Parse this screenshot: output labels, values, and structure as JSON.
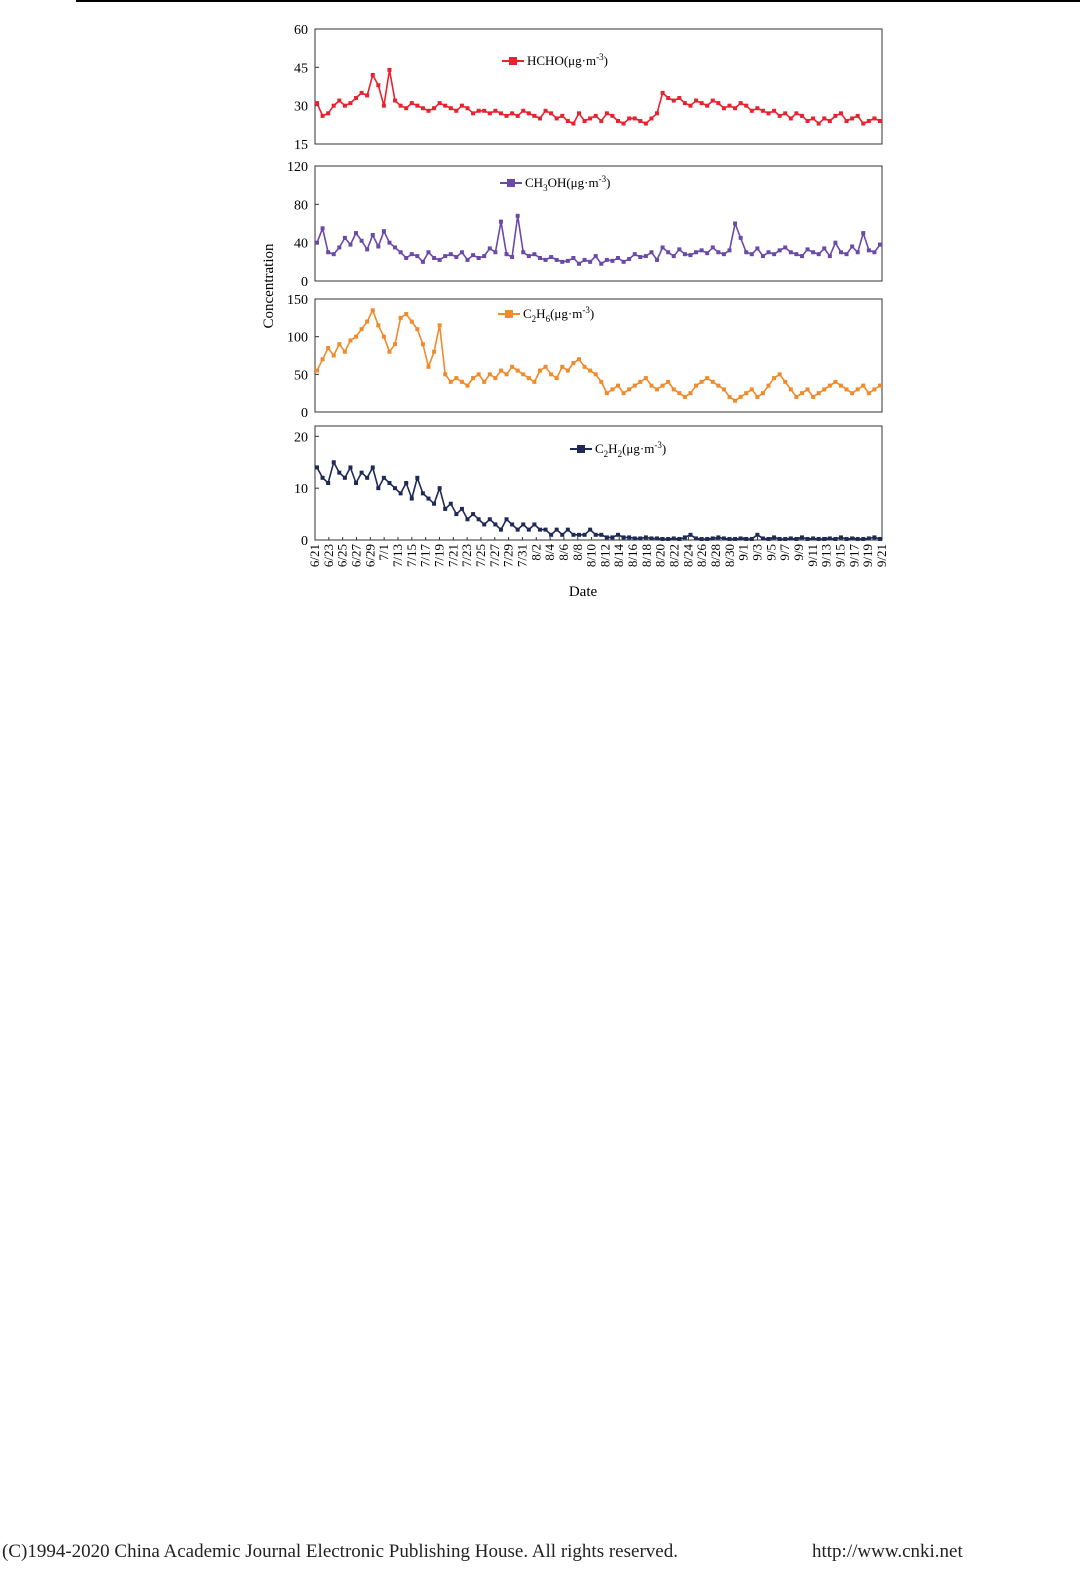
{
  "chart_data": {
    "type": "line",
    "xlabel": "Date",
    "ylabel": "Concentration",
    "x_tick_labels": [
      "6/21",
      "6/23",
      "6/25",
      "6/27",
      "6/29",
      "7/1",
      "7/13",
      "7/15",
      "7/17",
      "7/19",
      "7/21",
      "7/23",
      "7/25",
      "7/27",
      "7/29",
      "7/31",
      "8/2",
      "8/4",
      "8/6",
      "8/8",
      "8/10",
      "8/12",
      "8/14",
      "8/16",
      "8/18",
      "8/20",
      "8/22",
      "8/24",
      "8/26",
      "8/28",
      "8/30",
      "9/1",
      "9/3",
      "9/5",
      "9/7",
      "9/9",
      "9/11",
      "9/13",
      "9/15",
      "9/17",
      "9/19",
      "9/21"
    ],
    "panels": [
      {
        "series_name": "HCHO(μg·m⁻³)",
        "color": "#e8222e",
        "ylim": [
          15,
          60
        ],
        "yticks": [
          15,
          30,
          45,
          60
        ],
        "values": [
          31,
          26,
          27,
          30,
          32,
          30,
          31,
          33,
          35,
          34,
          42,
          38,
          30,
          44,
          32,
          30,
          29,
          31,
          30,
          29,
          28,
          29,
          31,
          30,
          29,
          28,
          30,
          29,
          27,
          28,
          28,
          27,
          28,
          27,
          26,
          27,
          26,
          28,
          27,
          26,
          25,
          28,
          27,
          25,
          26,
          24,
          23,
          27,
          24,
          25,
          26,
          24,
          27,
          26,
          24,
          23,
          25,
          25,
          24,
          23,
          25,
          27,
          35,
          33,
          32,
          33,
          31,
          30,
          32,
          31,
          30,
          32,
          31,
          29,
          30,
          29,
          31,
          30,
          28,
          29,
          28,
          27,
          28,
          26,
          27,
          25,
          27,
          26,
          24,
          25,
          23,
          25,
          24,
          26,
          27,
          24,
          25,
          26,
          23,
          24,
          25,
          24
        ]
      },
      {
        "series_name": "CH₃OH(μg·m⁻³)",
        "color": "#6a4aa6",
        "ylim": [
          0,
          120
        ],
        "yticks": [
          0,
          40,
          80,
          120
        ],
        "values": [
          40,
          55,
          30,
          28,
          35,
          45,
          38,
          50,
          42,
          33,
          48,
          36,
          52,
          40,
          35,
          30,
          24,
          28,
          26,
          20,
          30,
          24,
          22,
          26,
          28,
          25,
          30,
          22,
          27,
          24,
          26,
          34,
          30,
          62,
          28,
          25,
          68,
          30,
          26,
          28,
          24,
          22,
          25,
          22,
          20,
          21,
          24,
          18,
          22,
          20,
          26,
          18,
          22,
          21,
          24,
          20,
          23,
          28,
          25,
          26,
          30,
          22,
          35,
          30,
          26,
          33,
          28,
          27,
          30,
          32,
          29,
          35,
          30,
          28,
          32,
          60,
          45,
          30,
          28,
          34,
          26,
          30,
          28,
          32,
          35,
          30,
          28,
          26,
          33,
          30,
          28,
          34,
          26,
          40,
          30,
          28,
          36,
          30,
          50,
          32,
          30,
          38
        ]
      },
      {
        "series_name": "C₂H₆(μg·m⁻³)",
        "color": "#f08a2a",
        "ylim": [
          0,
          150
        ],
        "yticks": [
          0,
          50,
          100,
          150
        ],
        "values": [
          55,
          70,
          85,
          75,
          90,
          80,
          95,
          100,
          110,
          120,
          135,
          115,
          100,
          80,
          90,
          125,
          130,
          120,
          110,
          90,
          60,
          80,
          115,
          50,
          40,
          45,
          40,
          35,
          45,
          50,
          40,
          50,
          45,
          55,
          50,
          60,
          55,
          50,
          45,
          40,
          55,
          60,
          50,
          45,
          60,
          55,
          65,
          70,
          60,
          55,
          50,
          40,
          25,
          30,
          35,
          25,
          30,
          35,
          40,
          45,
          35,
          30,
          35,
          40,
          30,
          25,
          20,
          25,
          35,
          40,
          45,
          40,
          35,
          30,
          20,
          15,
          20,
          25,
          30,
          20,
          25,
          35,
          45,
          50,
          40,
          30,
          20,
          25,
          30,
          20,
          25,
          30,
          35,
          40,
          35,
          30,
          25,
          30,
          35,
          25,
          30,
          35
        ]
      },
      {
        "series_name": "C₂H₂(μg·m⁻³)",
        "color": "#1e2a55",
        "ylim": [
          0,
          22
        ],
        "yticks": [
          0,
          10,
          20
        ],
        "values": [
          14,
          12,
          11,
          15,
          13,
          12,
          14,
          11,
          13,
          12,
          14,
          10,
          12,
          11,
          10,
          9,
          11,
          8,
          12,
          9,
          8,
          7,
          10,
          6,
          7,
          5,
          6,
          4,
          5,
          4,
          3,
          4,
          3,
          2,
          4,
          3,
          2,
          3,
          2,
          3,
          2,
          2,
          1,
          2,
          1,
          2,
          1,
          1,
          1,
          2,
          1,
          1,
          0.5,
          0.5,
          1,
          0.5,
          0.5,
          0.3,
          0.3,
          0.5,
          0.3,
          0.3,
          0.2,
          0.2,
          0.3,
          0.2,
          0.5,
          1,
          0.3,
          0.2,
          0.2,
          0.3,
          0.5,
          0.3,
          0.2,
          0.2,
          0.3,
          0.2,
          0.2,
          1,
          0.3,
          0.2,
          0.5,
          0.2,
          0.2,
          0.3,
          0.2,
          0.5,
          0.2,
          0.3,
          0.2,
          0.2,
          0.3,
          0.2,
          0.5,
          0.2,
          0.3,
          0.2,
          0.2,
          0.3,
          0.5,
          0.2
        ]
      }
    ]
  },
  "footer": {
    "copyright": "(C)1994-2020 China Academic Journal Electronic Publishing House. All rights reserved.",
    "url": "http://www.cnki.net"
  }
}
